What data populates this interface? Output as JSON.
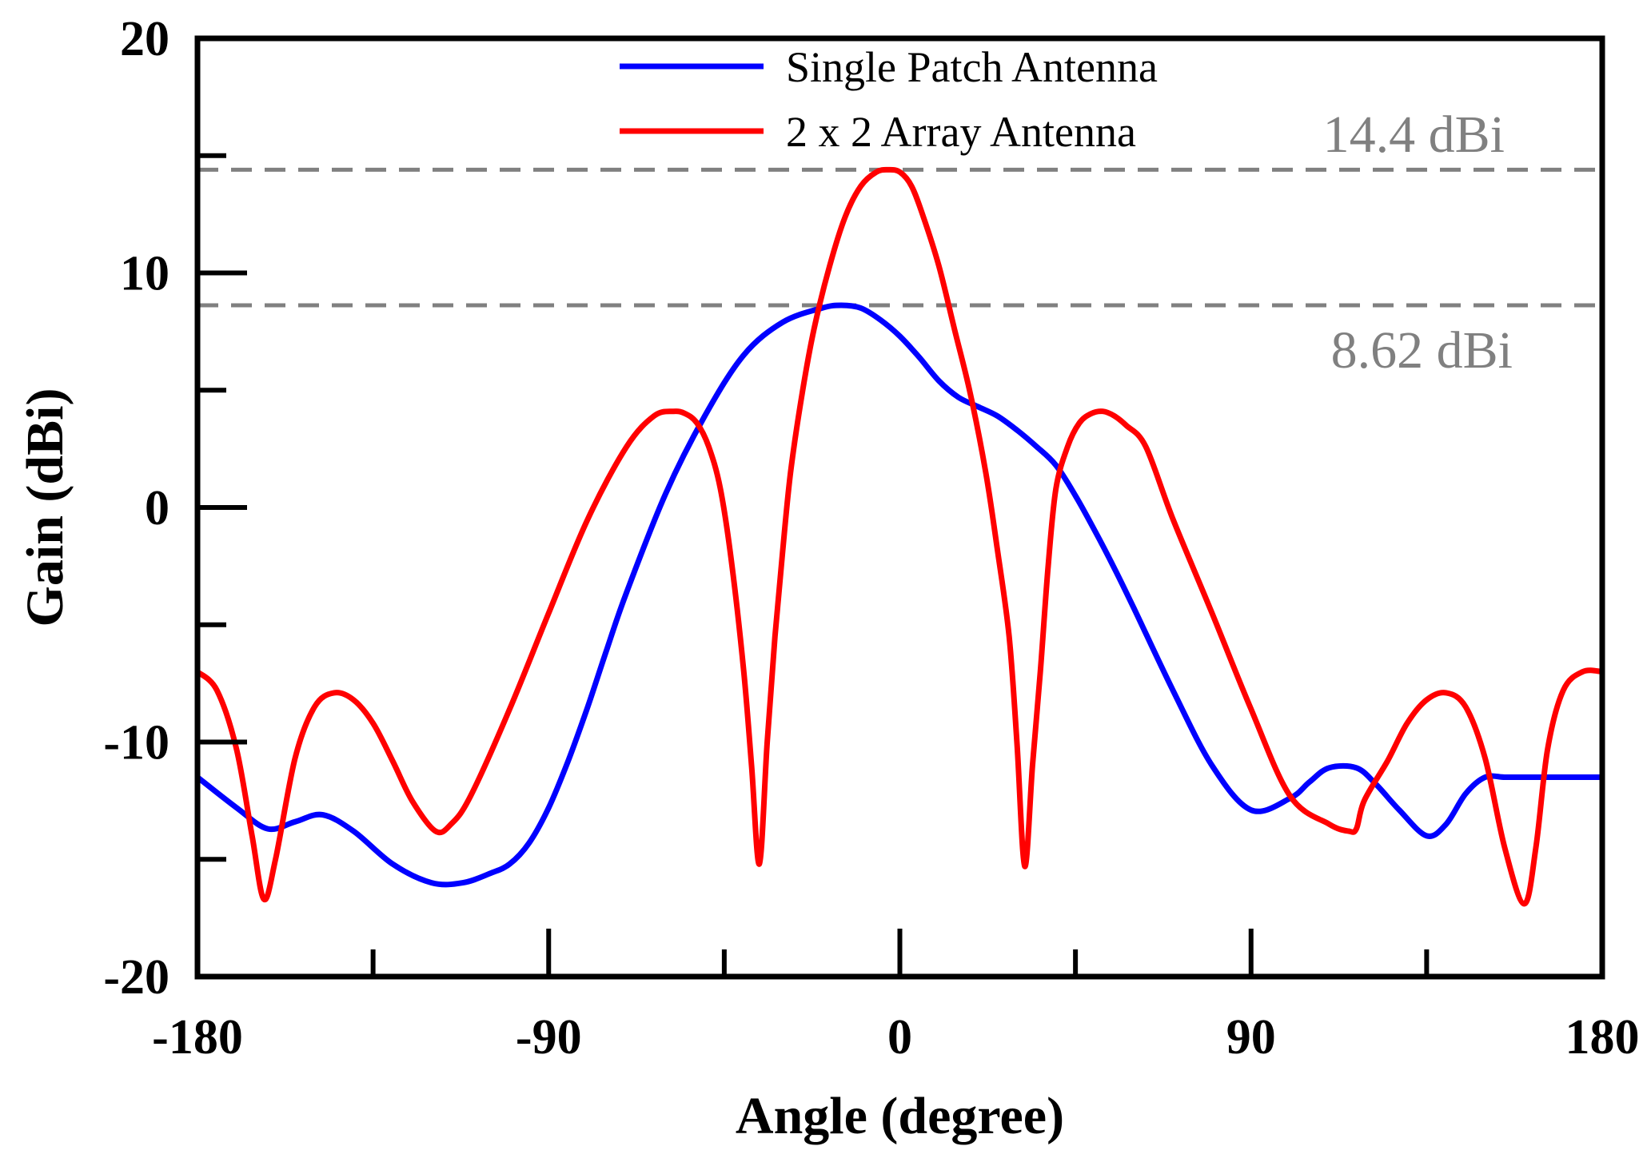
{
  "chart_data": {
    "type": "line",
    "xlabel": "Angle (degree)",
    "ylabel": "Gain (dBi)",
    "xlim": [
      -180,
      180
    ],
    "ylim": [
      -20,
      20
    ],
    "xticks": [
      -180,
      -90,
      0,
      90,
      180
    ],
    "yticks": [
      -20,
      -10,
      0,
      10,
      20
    ],
    "x_minor_step": 45,
    "y_minor_step": 5,
    "grid": false,
    "legend_position": "top-center",
    "series": [
      {
        "name": "Single Patch Antenna",
        "color": "#0000ff",
        "x": [
          -180,
          -170,
          -162,
          -155,
          -148,
          -140,
          -130,
          -120,
          -112,
          -105,
          -100,
          -95,
          -90,
          -85,
          -80,
          -75,
          -70,
          -60,
          -50,
          -40,
          -30,
          -20,
          -15,
          -10,
          -5,
          0,
          5,
          10,
          15,
          20,
          25,
          30,
          35,
          40,
          45,
          50,
          55,
          60,
          70,
          80,
          90,
          100,
          105,
          110,
          117,
          122,
          128,
          135,
          140,
          145,
          150,
          155,
          160,
          165,
          170,
          175,
          180
        ],
        "y": [
          -11.5,
          -12.8,
          -13.7,
          -13.4,
          -13.1,
          -13.8,
          -15.2,
          -16.0,
          -16.0,
          -15.6,
          -15.2,
          -14.3,
          -12.8,
          -10.8,
          -8.5,
          -6.0,
          -3.6,
          0.6,
          3.9,
          6.5,
          7.9,
          8.5,
          8.62,
          8.5,
          8.0,
          7.3,
          6.4,
          5.4,
          4.7,
          4.3,
          3.9,
          3.3,
          2.6,
          1.8,
          0.5,
          -1.0,
          -2.6,
          -4.3,
          -7.8,
          -11.0,
          -12.9,
          -12.4,
          -11.7,
          -11.1,
          -11.1,
          -11.8,
          -12.9,
          -14.0,
          -13.5,
          -12.2,
          -11.5,
          -11.5,
          -11.5,
          -11.5,
          -11.5,
          -11.5,
          -11.5
        ]
      },
      {
        "name": "2 x 2 Array Antenna",
        "color": "#ff0000",
        "x": [
          -180,
          -175,
          -170,
          -166,
          -163,
          -160,
          -155,
          -150,
          -145,
          -140,
          -135,
          -130,
          -125,
          -119,
          -115,
          -110,
          -100,
          -90,
          -80,
          -70,
          -63,
          -58,
          -55,
          -52,
          -49,
          -46,
          -43,
          -40,
          -38,
          -36,
          -34,
          -32,
          -30,
          -28,
          -25,
          -22,
          -18,
          -14,
          -10,
          -6,
          -3,
          0,
          3,
          6,
          10,
          14,
          18,
          22,
          25,
          28,
          30,
          32,
          34,
          36,
          38,
          40,
          43,
          46,
          49,
          52,
          55,
          58,
          63,
          70,
          80,
          90,
          100,
          110,
          115,
          117,
          119,
          125,
          130,
          135,
          140,
          145,
          150,
          155,
          160,
          163,
          166,
          170,
          175,
          180
        ],
        "y": [
          -7.0,
          -7.8,
          -10.3,
          -14.0,
          -16.7,
          -15.0,
          -10.7,
          -8.5,
          -7.9,
          -8.2,
          -9.2,
          -10.8,
          -12.5,
          -13.8,
          -13.5,
          -12.3,
          -8.6,
          -4.5,
          -0.5,
          2.6,
          3.9,
          4.1,
          4.0,
          3.6,
          2.6,
          0.8,
          -2.5,
          -7.0,
          -11.0,
          -15.2,
          -10.0,
          -5.5,
          -1.8,
          1.5,
          4.9,
          7.6,
          10.3,
          12.4,
          13.7,
          14.3,
          14.4,
          14.3,
          13.7,
          12.4,
          10.3,
          7.6,
          4.9,
          1.5,
          -1.8,
          -5.5,
          -10.0,
          -15.3,
          -11.0,
          -7.0,
          -2.5,
          0.8,
          2.6,
          3.6,
          4.0,
          4.1,
          3.9,
          3.5,
          2.6,
          -0.5,
          -4.5,
          -8.6,
          -12.3,
          -13.5,
          -13.8,
          -13.7,
          -12.5,
          -10.8,
          -9.2,
          -8.2,
          -7.9,
          -8.5,
          -10.7,
          -14.5,
          -16.9,
          -14.5,
          -10.3,
          -7.8,
          -7.0,
          -7.0
        ]
      }
    ],
    "reference_lines": [
      {
        "y": 14.4,
        "label": "14.4 dBi",
        "color": "#808080"
      },
      {
        "y": 8.62,
        "label": "8.62 dBi",
        "color": "#808080"
      }
    ]
  }
}
